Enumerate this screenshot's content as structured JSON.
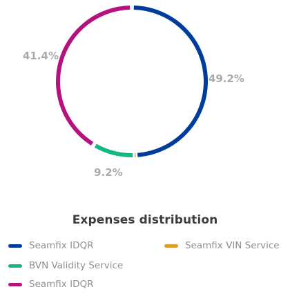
{
  "chart_data": {
    "type": "pie",
    "variant": "donut",
    "title": "Expenses distribution",
    "slices": [
      {
        "name": "Seamfix IDQR",
        "value": 49.2,
        "label": "49.2%",
        "color": "#003c9c"
      },
      {
        "name": "Seamfix VIN Service",
        "value": 0.2,
        "label": "",
        "color": "#e09b2a"
      },
      {
        "name": "BVN Validity Service",
        "value": 9.2,
        "label": "9.2%",
        "color": "#13b884"
      },
      {
        "name": "Seamfix IDQR",
        "value": 41.4,
        "label": "41.4%",
        "color": "#b5127e"
      }
    ],
    "legend": [
      {
        "name": "Seamfix IDQR",
        "color": "#003c9c"
      },
      {
        "name": "Seamfix VIN Service",
        "color": "#e09b2a"
      },
      {
        "name": "BVN Validity Service",
        "color": "#13b884"
      },
      {
        "name": "Seamfix IDQR",
        "color": "#b5127e"
      }
    ]
  }
}
